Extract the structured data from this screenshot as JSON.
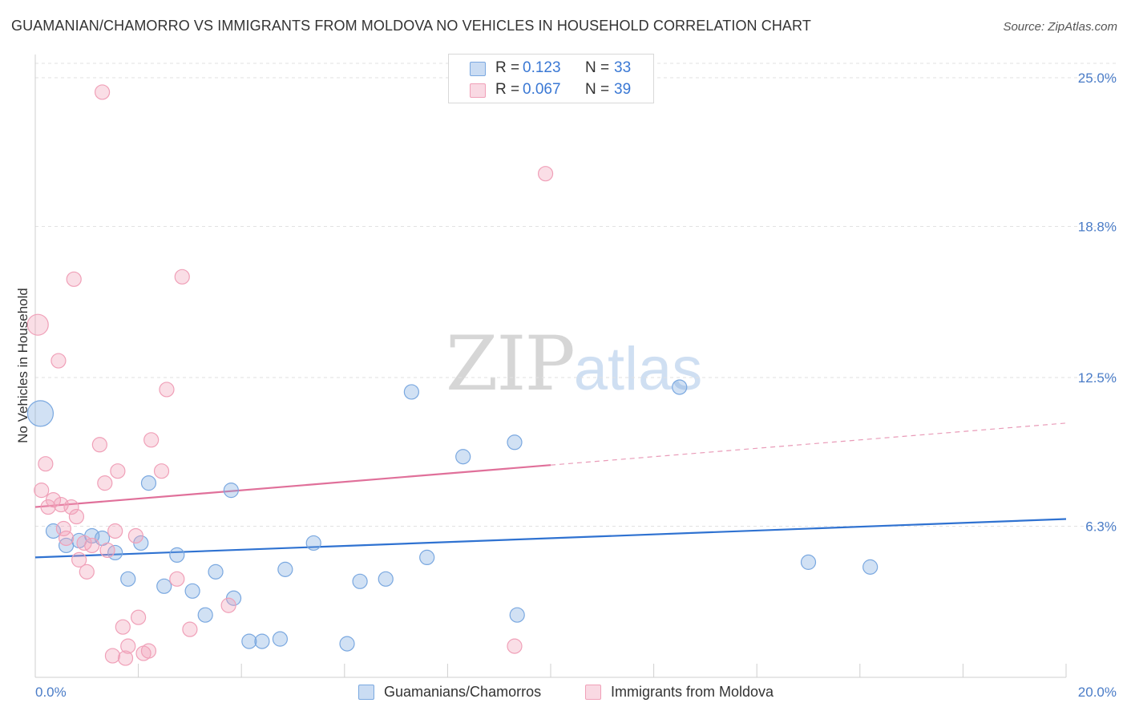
{
  "header": {
    "title": "GUAMANIAN/CHAMORRO VS IMMIGRANTS FROM MOLDOVA NO VEHICLES IN HOUSEHOLD CORRELATION CHART",
    "source": "Source: ZipAtlas.com"
  },
  "watermark": {
    "zip": "ZIP",
    "atlas": "atlas"
  },
  "legend": {
    "rows": [
      {
        "r_label": "R =",
        "r_value": "0.123",
        "n_label": "N =",
        "n_value": "33",
        "color": "#7aa8e0"
      },
      {
        "r_label": "R =",
        "r_value": "0.067",
        "n_label": "N =",
        "n_value": "39",
        "color": "#f0a0b8"
      }
    ]
  },
  "bottom_legend": {
    "items": [
      {
        "label": "Guamanians/Chamorros",
        "color": "#7aa8e0"
      },
      {
        "label": "Immigrants from Moldova",
        "color": "#f0a0b8"
      }
    ]
  },
  "chart_data": {
    "type": "scatter",
    "title": "GUAMANIAN/CHAMORRO VS IMMIGRANTS FROM MOLDOVA NO VEHICLES IN HOUSEHOLD CORRELATION CHART",
    "xlabel": "",
    "ylabel": "No Vehicles in Household",
    "xlim": [
      0,
      20
    ],
    "ylim": [
      0,
      25.0
    ],
    "x_tick_labels": [
      "0.0%",
      "20.0%"
    ],
    "y_ticks": [
      6.3,
      12.5,
      18.8,
      25.0
    ],
    "y_tick_labels": [
      "6.3%",
      "12.5%",
      "18.8%",
      "25.0%"
    ],
    "grid": true,
    "legend_position": "top-center",
    "series": [
      {
        "name": "Guamanians/Chamorros",
        "color": "#7aa8e0",
        "trend": {
          "x": [
            0,
            20
          ],
          "y": [
            5.0,
            6.6
          ],
          "dashed_from": null
        },
        "points": [
          {
            "x": 0.1,
            "y": 11.0,
            "s": 16
          },
          {
            "x": 0.35,
            "y": 6.1,
            "s": 9
          },
          {
            "x": 0.6,
            "y": 5.5,
            "s": 9
          },
          {
            "x": 0.85,
            "y": 5.7,
            "s": 9
          },
          {
            "x": 1.1,
            "y": 5.9,
            "s": 9
          },
          {
            "x": 1.3,
            "y": 5.8,
            "s": 9
          },
          {
            "x": 1.55,
            "y": 5.2,
            "s": 9
          },
          {
            "x": 1.8,
            "y": 4.1,
            "s": 9
          },
          {
            "x": 2.05,
            "y": 5.6,
            "s": 9
          },
          {
            "x": 2.2,
            "y": 8.1,
            "s": 9
          },
          {
            "x": 2.5,
            "y": 3.8,
            "s": 9
          },
          {
            "x": 2.75,
            "y": 5.1,
            "s": 9
          },
          {
            "x": 3.05,
            "y": 3.6,
            "s": 9
          },
          {
            "x": 3.3,
            "y": 2.6,
            "s": 9
          },
          {
            "x": 3.5,
            "y": 4.4,
            "s": 9
          },
          {
            "x": 3.8,
            "y": 7.8,
            "s": 9
          },
          {
            "x": 3.85,
            "y": 3.3,
            "s": 9
          },
          {
            "x": 4.15,
            "y": 1.5,
            "s": 9
          },
          {
            "x": 4.4,
            "y": 1.5,
            "s": 9
          },
          {
            "x": 4.75,
            "y": 1.6,
            "s": 9
          },
          {
            "x": 4.85,
            "y": 4.5,
            "s": 9
          },
          {
            "x": 5.4,
            "y": 5.6,
            "s": 9
          },
          {
            "x": 6.05,
            "y": 1.4,
            "s": 9
          },
          {
            "x": 6.3,
            "y": 4.0,
            "s": 9
          },
          {
            "x": 6.8,
            "y": 4.1,
            "s": 9
          },
          {
            "x": 7.3,
            "y": 11.9,
            "s": 9
          },
          {
            "x": 7.6,
            "y": 5.0,
            "s": 9
          },
          {
            "x": 8.3,
            "y": 9.2,
            "s": 9
          },
          {
            "x": 9.3,
            "y": 9.8,
            "s": 9
          },
          {
            "x": 9.35,
            "y": 2.6,
            "s": 9
          },
          {
            "x": 12.5,
            "y": 12.1,
            "s": 9
          },
          {
            "x": 15.0,
            "y": 4.8,
            "s": 9
          },
          {
            "x": 16.2,
            "y": 4.6,
            "s": 9
          }
        ]
      },
      {
        "name": "Immigrants from Moldova",
        "color": "#f0a0b8",
        "trend": {
          "x": [
            0,
            20
          ],
          "y": [
            7.1,
            10.6
          ],
          "dashed_from": 10.0
        },
        "points": [
          {
            "x": 0.05,
            "y": 14.7,
            "s": 13
          },
          {
            "x": 0.12,
            "y": 7.8,
            "s": 9
          },
          {
            "x": 0.2,
            "y": 8.9,
            "s": 9
          },
          {
            "x": 0.25,
            "y": 7.1,
            "s": 9
          },
          {
            "x": 0.35,
            "y": 7.4,
            "s": 9
          },
          {
            "x": 0.45,
            "y": 13.2,
            "s": 9
          },
          {
            "x": 0.5,
            "y": 7.2,
            "s": 9
          },
          {
            "x": 0.55,
            "y": 6.2,
            "s": 9
          },
          {
            "x": 0.6,
            "y": 5.8,
            "s": 9
          },
          {
            "x": 0.7,
            "y": 7.1,
            "s": 9
          },
          {
            "x": 0.75,
            "y": 16.6,
            "s": 9
          },
          {
            "x": 0.8,
            "y": 6.7,
            "s": 9
          },
          {
            "x": 0.85,
            "y": 4.9,
            "s": 9
          },
          {
            "x": 0.95,
            "y": 5.6,
            "s": 9
          },
          {
            "x": 1.0,
            "y": 4.4,
            "s": 9
          },
          {
            "x": 1.1,
            "y": 5.5,
            "s": 9
          },
          {
            "x": 1.25,
            "y": 9.7,
            "s": 9
          },
          {
            "x": 1.3,
            "y": 24.4,
            "s": 9
          },
          {
            "x": 1.35,
            "y": 8.1,
            "s": 9
          },
          {
            "x": 1.4,
            "y": 5.3,
            "s": 9
          },
          {
            "x": 1.5,
            "y": 0.9,
            "s": 9
          },
          {
            "x": 1.55,
            "y": 6.1,
            "s": 9
          },
          {
            "x": 1.6,
            "y": 8.6,
            "s": 9
          },
          {
            "x": 1.7,
            "y": 2.1,
            "s": 9
          },
          {
            "x": 1.75,
            "y": 0.8,
            "s": 9
          },
          {
            "x": 1.8,
            "y": 1.3,
            "s": 9
          },
          {
            "x": 1.95,
            "y": 5.9,
            "s": 9
          },
          {
            "x": 2.0,
            "y": 2.5,
            "s": 9
          },
          {
            "x": 2.1,
            "y": 1.0,
            "s": 9
          },
          {
            "x": 2.2,
            "y": 1.1,
            "s": 9
          },
          {
            "x": 2.25,
            "y": 9.9,
            "s": 9
          },
          {
            "x": 2.45,
            "y": 8.6,
            "s": 9
          },
          {
            "x": 2.55,
            "y": 12.0,
            "s": 9
          },
          {
            "x": 2.75,
            "y": 4.1,
            "s": 9
          },
          {
            "x": 2.85,
            "y": 16.7,
            "s": 9
          },
          {
            "x": 3.0,
            "y": 2.0,
            "s": 9
          },
          {
            "x": 3.75,
            "y": 3.0,
            "s": 9
          },
          {
            "x": 9.3,
            "y": 1.3,
            "s": 9
          },
          {
            "x": 9.9,
            "y": 21.0,
            "s": 9
          }
        ]
      }
    ]
  }
}
